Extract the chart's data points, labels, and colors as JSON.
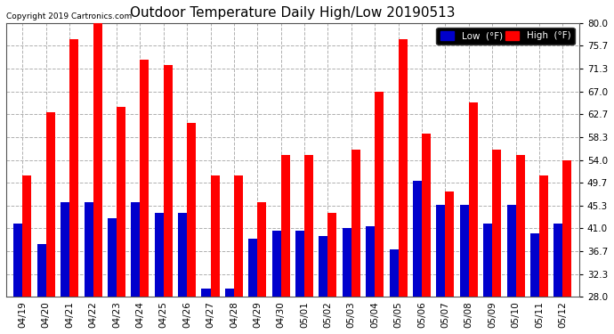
{
  "title": "Outdoor Temperature Daily High/Low 20190513",
  "copyright": "Copyright 2019 Cartronics.com",
  "legend_low": "Low  (°F)",
  "legend_high": "High  (°F)",
  "dates": [
    "04/19",
    "04/20",
    "04/21",
    "04/22",
    "04/23",
    "04/24",
    "04/25",
    "04/26",
    "04/27",
    "04/28",
    "04/29",
    "04/30",
    "05/01",
    "05/02",
    "05/03",
    "05/04",
    "05/05",
    "05/06",
    "05/07",
    "05/08",
    "05/09",
    "05/10",
    "05/11",
    "05/12"
  ],
  "highs": [
    51.0,
    63.0,
    77.0,
    81.0,
    64.0,
    73.0,
    72.0,
    61.0,
    51.0,
    51.0,
    46.0,
    55.0,
    55.0,
    44.0,
    56.0,
    67.0,
    77.0,
    59.0,
    48.0,
    65.0,
    56.0,
    55.0,
    51.0,
    54.0
  ],
  "lows": [
    42.0,
    38.0,
    46.0,
    46.0,
    43.0,
    46.0,
    44.0,
    44.0,
    29.5,
    29.5,
    39.0,
    40.5,
    40.5,
    39.5,
    41.0,
    41.5,
    37.0,
    50.0,
    45.5,
    45.5,
    42.0,
    45.5,
    40.0,
    42.0
  ],
  "ymin": 28.0,
  "ymax": 80.0,
  "yticks": [
    28.0,
    32.3,
    36.7,
    41.0,
    45.3,
    49.7,
    54.0,
    58.3,
    62.7,
    67.0,
    71.3,
    75.7,
    80.0
  ],
  "high_color": "#ff0000",
  "low_color": "#0000cc",
  "bg_color": "#ffffff",
  "plot_bg_color": "#ffffff",
  "grid_color": "#b0b0b0",
  "title_fontsize": 11,
  "bar_width": 0.38
}
